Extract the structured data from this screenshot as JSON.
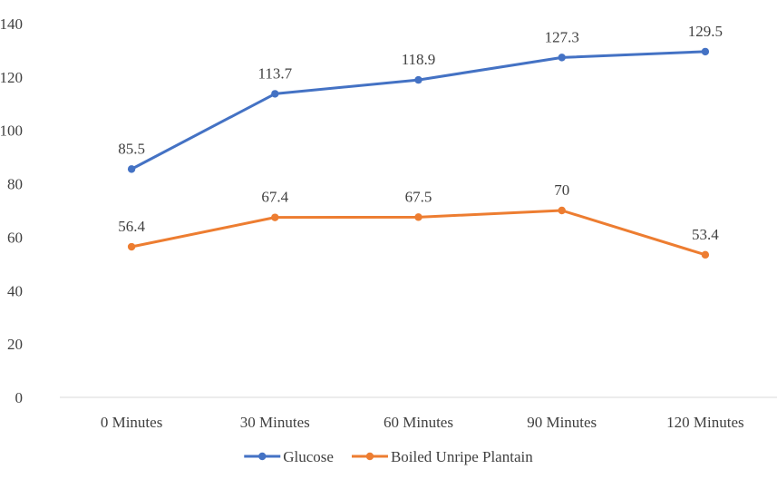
{
  "chart_data": {
    "type": "line",
    "categories": [
      "0 Minutes",
      "30 Minutes",
      "60 Minutes",
      "90 Minutes",
      "120 Minutes"
    ],
    "series": [
      {
        "name": "Glucose",
        "values": [
          85.5,
          113.7,
          118.9,
          127.3,
          129.5
        ],
        "color": "#4472C4",
        "labels": [
          "85.5",
          "113.7",
          "118.9",
          "127.3",
          "129.5"
        ]
      },
      {
        "name": "Boiled Unripe Plantain",
        "values": [
          56.4,
          67.4,
          67.5,
          70,
          53.4
        ],
        "color": "#ED7D31",
        "labels": [
          "56.4",
          "67.4",
          "67.5",
          "70",
          "53.4"
        ]
      }
    ],
    "ylim": [
      0,
      140
    ],
    "yticks": [
      0,
      20,
      40,
      60,
      80,
      100,
      120,
      140
    ],
    "ytick_labels": [
      "0",
      "20",
      "40",
      "60",
      "80",
      "100",
      "120",
      "140"
    ],
    "grid": false,
    "legend_position": "bottom",
    "title": "",
    "xlabel": "",
    "ylabel": ""
  }
}
